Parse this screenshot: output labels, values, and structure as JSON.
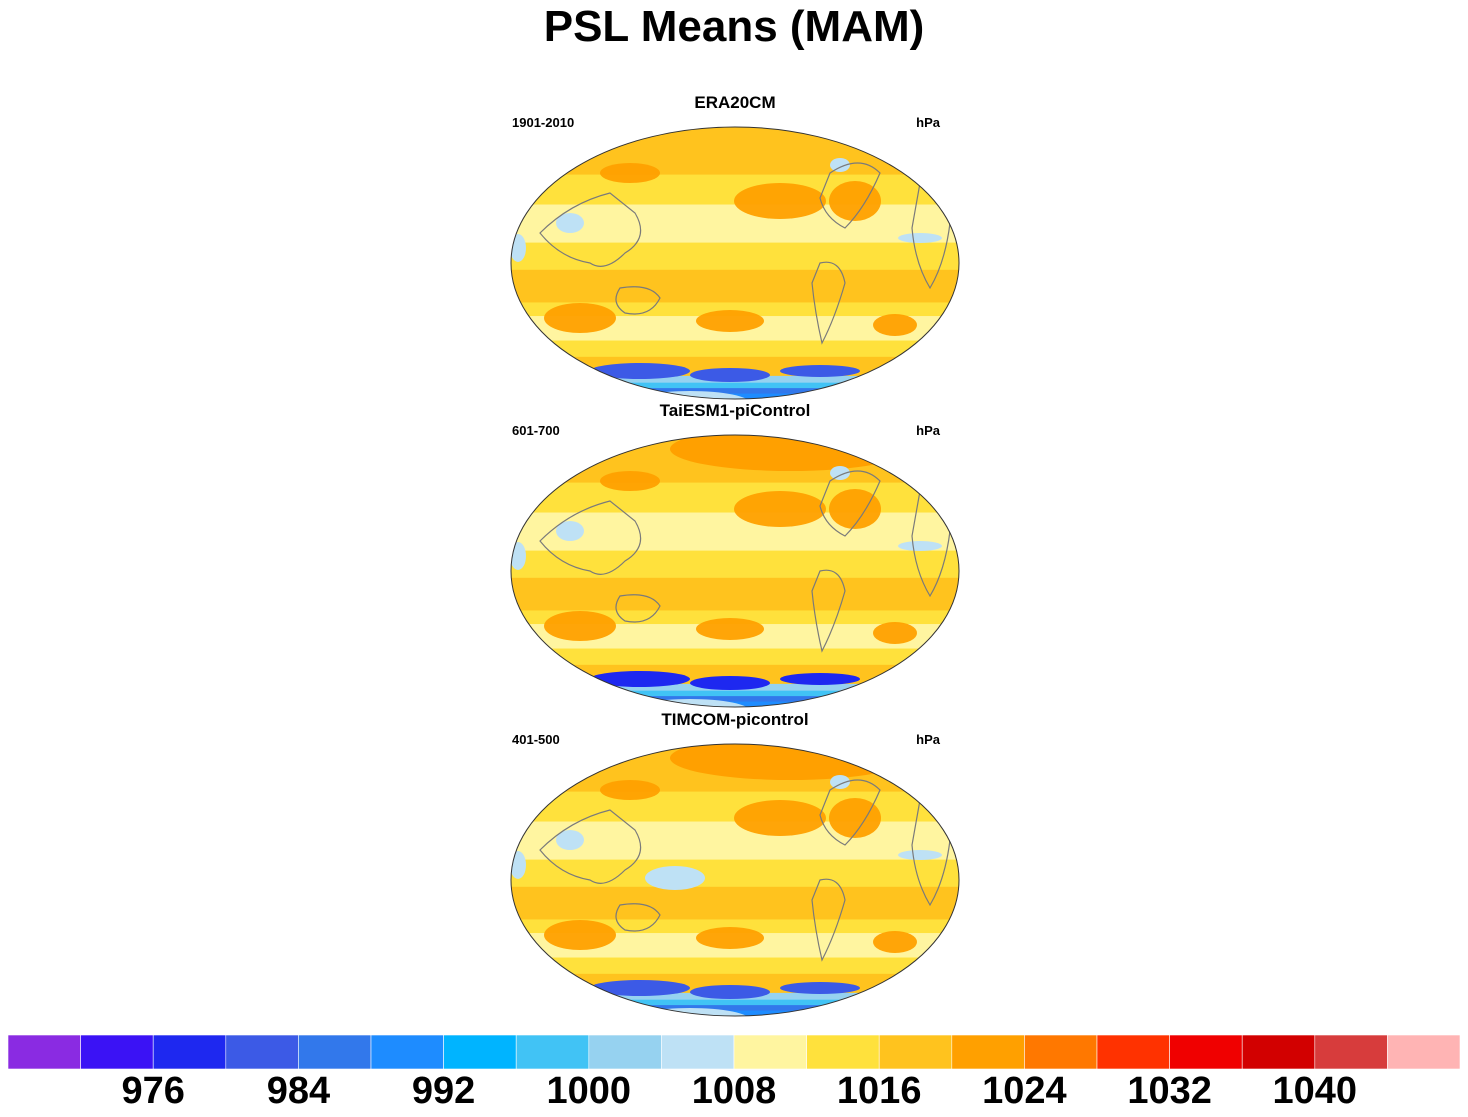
{
  "title": "PSL Means (MAM)",
  "panels": [
    {
      "title": "ERA20CM",
      "left_label": "1901-2010",
      "right_label": "hPa"
    },
    {
      "title": "TaiESM1-piControl",
      "left_label": "601-700",
      "right_label": "hPa"
    },
    {
      "title": "TIMCOM-picontrol",
      "left_label": "401-500",
      "right_label": "hPa"
    }
  ],
  "colorbar": {
    "colors": [
      "#8a2be2",
      "#3b12f5",
      "#1e28f0",
      "#3c5ae6",
      "#3278eb",
      "#1e8cff",
      "#00b4ff",
      "#41c3f5",
      "#96d2f0",
      "#bee1f5",
      "#fff5a0",
      "#ffe13c",
      "#ffc31e",
      "#ffa000",
      "#ff7800",
      "#ff3200",
      "#f00000",
      "#d20000",
      "#d73c3c",
      "#ffb4b4"
    ],
    "tick_labels": [
      "976",
      "984",
      "992",
      "1000",
      "1008",
      "1016",
      "1024",
      "1032",
      "1040"
    ],
    "units": "hPa"
  }
}
